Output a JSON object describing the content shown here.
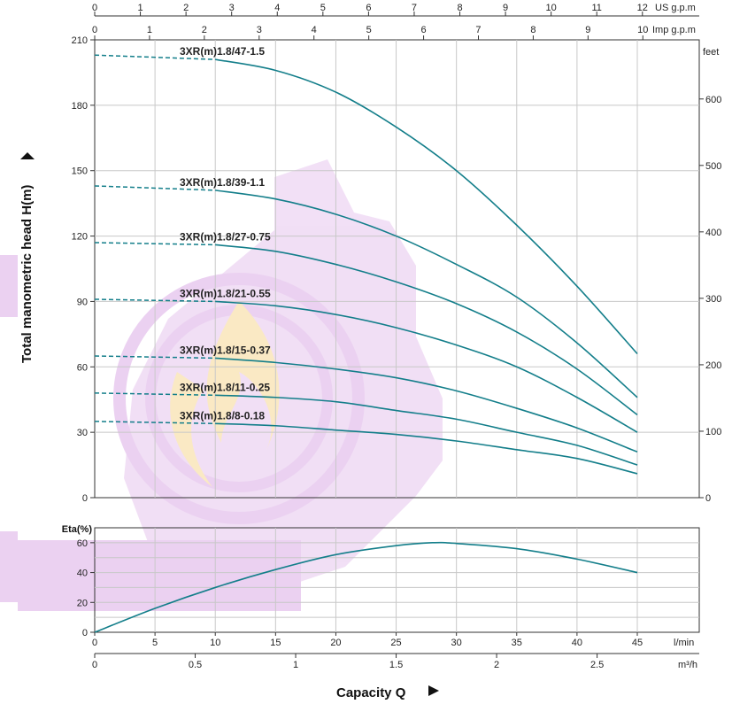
{
  "chart_data": [
    {
      "type": "line",
      "name": "head-curves",
      "ylabel": "Total manometric head H(m)",
      "ylim": [
        0,
        210
      ],
      "y_ticks": [
        0,
        30,
        60,
        90,
        120,
        150,
        180,
        210
      ],
      "right_axis": {
        "unit": "feet",
        "ticks": [
          0,
          100,
          200,
          300,
          400,
          500,
          600
        ]
      },
      "top_axis_us": {
        "unit": "US g.p.m",
        "ticks": [
          0,
          1,
          2,
          3,
          4,
          5,
          6,
          7,
          8,
          9,
          10,
          11,
          12
        ]
      },
      "top_axis_imp": {
        "unit": "Imp g.p.m",
        "ticks": [
          0,
          1,
          2,
          3,
          4,
          5,
          6,
          7,
          8,
          9,
          10
        ]
      },
      "xlim": [
        0,
        45
      ],
      "grid": true,
      "series": [
        {
          "name": "3XR(m)1.8/47-1.5",
          "x": [
            0,
            10,
            15,
            20,
            25,
            30,
            35,
            40,
            45
          ],
          "y": [
            203,
            201,
            196,
            186,
            170,
            150,
            125,
            97,
            66
          ]
        },
        {
          "name": "3XR(m)1.8/39-1.1",
          "x": [
            0,
            10,
            15,
            20,
            25,
            30,
            35,
            40,
            45
          ],
          "y": [
            143,
            141,
            137,
            130,
            120,
            107,
            92,
            71,
            46
          ]
        },
        {
          "name": "3XR(m)1.8/27-0.75",
          "x": [
            0,
            10,
            15,
            20,
            25,
            30,
            35,
            40,
            45
          ],
          "y": [
            117,
            116,
            113,
            107,
            99,
            89,
            76,
            59,
            38
          ]
        },
        {
          "name": "3XR(m)1.8/21-0.55",
          "x": [
            0,
            10,
            15,
            20,
            25,
            30,
            35,
            40,
            45
          ],
          "y": [
            91,
            90,
            88,
            84,
            78,
            70,
            60,
            46,
            30
          ]
        },
        {
          "name": "3XR(m)1.8/15-0.37",
          "x": [
            0,
            10,
            15,
            20,
            25,
            30,
            35,
            40,
            45
          ],
          "y": [
            65,
            64,
            62,
            59,
            55,
            49,
            41,
            32,
            21
          ]
        },
        {
          "name": "3XR(m)1.8/11-0.25",
          "x": [
            0,
            10,
            15,
            20,
            25,
            30,
            35,
            40,
            45
          ],
          "y": [
            48,
            47,
            46,
            44,
            40,
            36,
            30,
            24,
            15
          ]
        },
        {
          "name": "3XR(m)1.8/8-0.18",
          "x": [
            0,
            10,
            15,
            20,
            25,
            30,
            35,
            40,
            45
          ],
          "y": [
            35,
            34,
            33,
            31,
            29,
            26,
            22,
            18,
            11
          ]
        }
      ]
    },
    {
      "type": "line",
      "name": "efficiency-curve",
      "ylabel": "Eta(%)",
      "ylim": [
        0,
        70
      ],
      "y_ticks": [
        0,
        20,
        40,
        60
      ],
      "xlabel": "Capacity Q",
      "xlim": [
        0,
        45
      ],
      "x_ticks_lmin": {
        "unit": "l/min",
        "ticks": [
          0,
          5,
          10,
          15,
          20,
          25,
          30,
          35,
          40,
          45
        ]
      },
      "x_ticks_m3h": {
        "unit": "m³/h",
        "ticks": [
          0,
          0.5,
          1,
          1.5,
          2,
          2.5
        ]
      },
      "grid": true,
      "series": [
        {
          "name": "",
          "x": [
            0,
            5,
            10,
            15,
            20,
            25,
            28,
            30,
            35,
            40,
            45
          ],
          "y": [
            0,
            16,
            30,
            42,
            52,
            58,
            60,
            59.5,
            56,
            49,
            40
          ]
        }
      ]
    }
  ],
  "colors": {
    "curve": "#137e8a",
    "grid": "#c8c8c8",
    "axis": "#333333",
    "watermark": "#c77dd8",
    "flame": "#f3c15a"
  }
}
